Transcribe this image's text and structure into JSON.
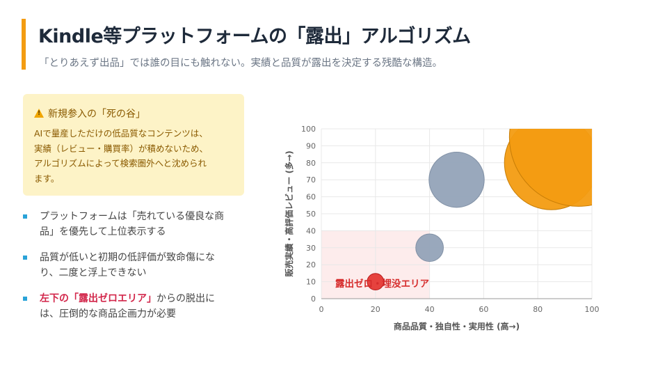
{
  "header": {
    "title": "Kindle等プラットフォームの「露出」アルゴリズム",
    "subtitle": "「とりあえず出品」では誰の目にも触れない。実績と品質が露出を決定する残酷な構造。",
    "accent_color": "#f39c12"
  },
  "warning": {
    "icon": "warning-icon",
    "title": "新規参入の「死の谷」",
    "lines": [
      "AIで量産しただけの低品質なコンテンツは、",
      "実績（レビュー・購買率）が積めないため、",
      "アルゴリズムによって検索圏外へと沈められ",
      "ます。"
    ]
  },
  "bullets": [
    {
      "lines": [
        "プラットフォームは「売れている優良な商",
        "品」を優先して上位表示する"
      ]
    },
    {
      "lines": [
        "品質が低いと初期の低評価が致命傷にな",
        "り、二度と浮上できない"
      ]
    },
    {
      "highlight": "左下の「露出ゼロエリア」",
      "lines": [
        "からの脱出に",
        "は、圧倒的な商品企画力が必要"
      ]
    }
  ],
  "chart_data": {
    "type": "scatter",
    "title": "",
    "xlabel": "商品品質・独自性・実用性 (高→)",
    "ylabel": "販売実績・高評価レビュー (多→)",
    "xlim": [
      0,
      100
    ],
    "ylim": [
      0,
      100
    ],
    "xticks": [
      0,
      20,
      40,
      60,
      80,
      100
    ],
    "yticks": [
      0,
      10,
      20,
      30,
      40,
      50,
      60,
      70,
      80,
      90,
      100
    ],
    "grid": true,
    "zone": {
      "label": "露出ゼロ・埋没エリア",
      "x": [
        0,
        40
      ],
      "y": [
        0,
        40
      ],
      "color": "#fdecec"
    },
    "points": [
      {
        "x": 20,
        "y": 10,
        "r": 3,
        "color": "#e53935"
      },
      {
        "x": 40,
        "y": 30,
        "r": 5,
        "color": "#94a3b8"
      },
      {
        "x": 50,
        "y": 70,
        "r": 10,
        "color": "#94a3b8"
      },
      {
        "x": 85,
        "y": 80,
        "r": 17,
        "color": "#f39c12"
      },
      {
        "x": 95,
        "y": 95,
        "r": 25,
        "color": "#f39c12"
      }
    ]
  }
}
